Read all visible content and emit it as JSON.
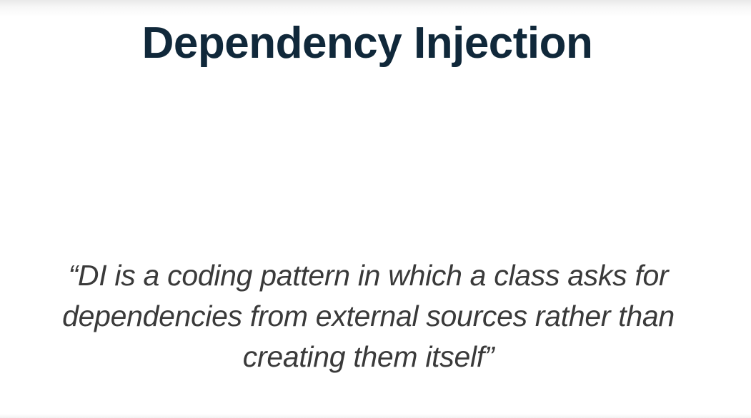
{
  "slide": {
    "title": "Dependency Injection",
    "quote_lines": [
      "“DI is a coding pattern in which a class asks for",
      "dependencies from external sources rather than",
      "creating them itself”"
    ]
  },
  "colors": {
    "title": "#10283a",
    "body_text": "#3a3a3a",
    "background": "#ffffff"
  }
}
